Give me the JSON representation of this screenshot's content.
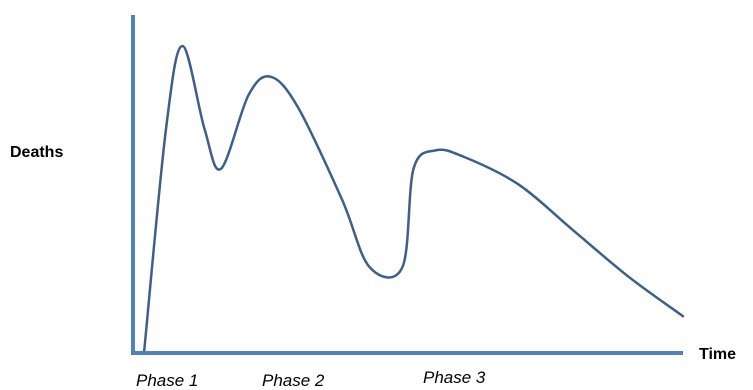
{
  "chart_data": {
    "type": "line",
    "title": "",
    "xlabel": "Time",
    "ylabel": "Deaths",
    "grid": false,
    "legend": "none",
    "x_ticks_shown": false,
    "y_ticks_shown": false,
    "annotations": [
      {
        "text": "Phase 1",
        "x": 0.9
      },
      {
        "text": "Phase 2",
        "x": 2.4
      },
      {
        "text": "Phase 3",
        "x": 4.8
      }
    ],
    "xlim": [
      0,
      10
    ],
    "ylim": [
      0,
      100
    ],
    "series": [
      {
        "name": "",
        "color": "#3F5F8A",
        "x": [
          0.2,
          0.6,
          0.9,
          1.3,
          1.6,
          2.1,
          2.5,
          3.0,
          3.8,
          4.3,
          4.9,
          5.1,
          5.5,
          6.0,
          7.0,
          8.0,
          9.0,
          10.0
        ],
        "y": [
          0,
          73,
          100,
          73,
          60,
          84,
          90,
          80,
          50,
          28,
          28,
          60,
          66,
          64,
          55,
          40,
          25,
          12
        ]
      }
    ]
  }
}
